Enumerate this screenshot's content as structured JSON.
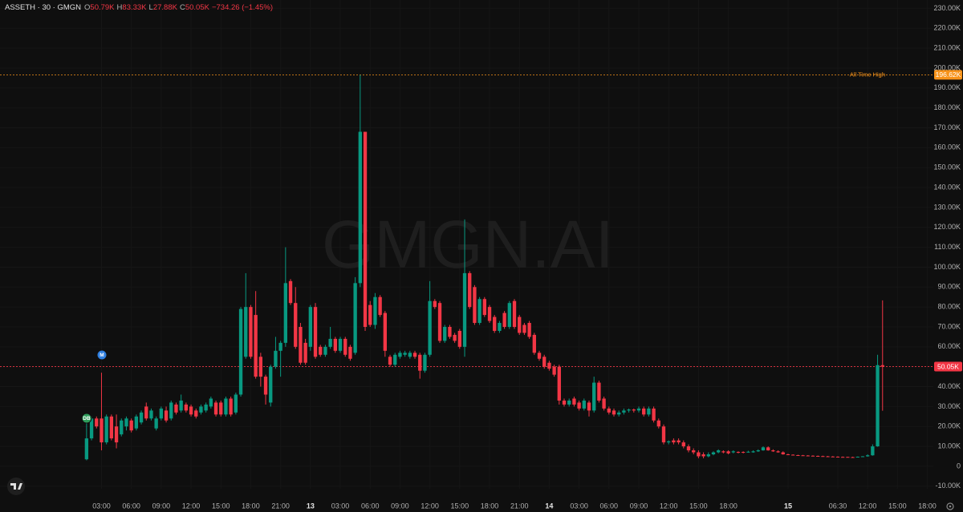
{
  "chart_data": {
    "type": "candlestick",
    "title": "ASSETH · 30 · GMGN",
    "ohlc": [
      {
        "key": "O",
        "text": "50.79K"
      },
      {
        "key": "H",
        "text": "83.33K"
      },
      {
        "key": "L",
        "text": "27.88K"
      },
      {
        "key": "C",
        "text": "50.05K"
      }
    ],
    "change": "−734.26 (−1.45%)",
    "watermark": "GMGN.AI",
    "markers": [
      {
        "label": "DB",
        "color": "#2e9e5b"
      },
      {
        "label": "M",
        "color": "#2f7fe0"
      }
    ],
    "up_color": "#089981",
    "down_color": "#f23645",
    "grid": true,
    "xlim": [
      -17.4,
      170.2
    ],
    "ylim": [
      -11.3,
      234.2
    ],
    "xticks": [
      {
        "value": 3,
        "label": "03:00"
      },
      {
        "value": 9,
        "label": "06:00"
      },
      {
        "value": 15,
        "label": "09:00"
      },
      {
        "value": 21,
        "label": "12:00"
      },
      {
        "value": 27,
        "label": "15:00"
      },
      {
        "value": 33,
        "label": "18:00"
      },
      {
        "value": 39,
        "label": "21:00"
      },
      {
        "value": 45,
        "label": "13"
      },
      {
        "value": 51,
        "label": "03:00"
      },
      {
        "value": 57,
        "label": "06:00"
      },
      {
        "value": 63,
        "label": "09:00"
      },
      {
        "value": 69,
        "label": "12:00"
      },
      {
        "value": 75,
        "label": "15:00"
      },
      {
        "value": 81,
        "label": "18:00"
      },
      {
        "value": 87,
        "label": "21:00"
      },
      {
        "value": 93,
        "label": "14"
      },
      {
        "value": 99,
        "label": "03:00"
      },
      {
        "value": 105,
        "label": "06:00"
      },
      {
        "value": 111,
        "label": "09:00"
      },
      {
        "value": 117,
        "label": "12:00"
      },
      {
        "value": 123,
        "label": "15:00"
      },
      {
        "value": 129,
        "label": "18:00"
      },
      {
        "value": 141,
        "label": "15"
      },
      {
        "value": 151,
        "label": "06:30"
      },
      {
        "value": 157,
        "label": "12:00"
      },
      {
        "value": 163,
        "label": "15:00"
      },
      {
        "value": 169,
        "label": "18:00"
      }
    ],
    "yticks": [
      {
        "value": 230,
        "label": "230.00K"
      },
      {
        "value": 220,
        "label": "220.00K"
      },
      {
        "value": 210,
        "label": "210.00K"
      },
      {
        "value": 200,
        "label": "200.00K"
      },
      {
        "value": 190,
        "label": "190.00K"
      },
      {
        "value": 180,
        "label": "180.00K"
      },
      {
        "value": 170,
        "label": "170.00K"
      },
      {
        "value": 160,
        "label": "160.00K"
      },
      {
        "value": 150,
        "label": "150.00K"
      },
      {
        "value": 140,
        "label": "140.00K"
      },
      {
        "value": 130,
        "label": "130.00K"
      },
      {
        "value": 120,
        "label": "120.00K"
      },
      {
        "value": 110,
        "label": "110.00K"
      },
      {
        "value": 100,
        "label": "100.00K"
      },
      {
        "value": 90,
        "label": "90.00K"
      },
      {
        "value": 80,
        "label": "80.00K"
      },
      {
        "value": 70,
        "label": "70.00K"
      },
      {
        "value": 60,
        "label": "60.00K"
      },
      {
        "value": 50,
        "label": "50.00K"
      },
      {
        "value": 40,
        "label": "40.00K"
      },
      {
        "value": 30,
        "label": "30.00K"
      },
      {
        "value": 20,
        "label": "20.00K"
      },
      {
        "value": 10,
        "label": "10.00K"
      },
      0,
      {
        "value": -10,
        "label": "-10.00K"
      }
    ],
    "price_lines": [
      {
        "name": "All Time High",
        "value": 196.62,
        "label": "196.62K",
        "color": "#f7931a"
      },
      {
        "value": 50.05,
        "label": "50.05K",
        "color": "#f23645"
      }
    ],
    "x": [
      0,
      1,
      2,
      3,
      4,
      5,
      6,
      7,
      8,
      9,
      10,
      11,
      12,
      13,
      14,
      15,
      16,
      17,
      18,
      19,
      20,
      21,
      22,
      23,
      24,
      25,
      26,
      27,
      28,
      29,
      30,
      31,
      32,
      33,
      34,
      35,
      36,
      37,
      38,
      39,
      40,
      41,
      42,
      43,
      44,
      45,
      46,
      47,
      48,
      49,
      50,
      51,
      52,
      53,
      54,
      55,
      56,
      57,
      58,
      59,
      60,
      61,
      62,
      63,
      64,
      65,
      66,
      67,
      68,
      69,
      70,
      71,
      72,
      73,
      74,
      75,
      76,
      77,
      78,
      79,
      80,
      81,
      82,
      83,
      84,
      85,
      86,
      87,
      88,
      89,
      90,
      91,
      92,
      93,
      94,
      95,
      96,
      97,
      98,
      99,
      100,
      101,
      102,
      103,
      104,
      105,
      106,
      107,
      108,
      109,
      110,
      111,
      112,
      113,
      114,
      115,
      116,
      117,
      118,
      119,
      120,
      121,
      122,
      123,
      124,
      125,
      126,
      127,
      128,
      129,
      130,
      131,
      132,
      133,
      134,
      135,
      136,
      137,
      138,
      139,
      140,
      141,
      142,
      143,
      144,
      145,
      146,
      147,
      148,
      149,
      150,
      151,
      152,
      153,
      154,
      155,
      156,
      157,
      158,
      159,
      160
    ],
    "candles": [
      [
        3.5,
        22,
        3,
        14
      ],
      [
        14,
        25,
        13,
        24
      ],
      [
        24,
        25,
        19,
        20
      ],
      [
        24,
        47,
        8,
        12
      ],
      [
        12,
        26,
        11,
        25
      ],
      [
        25,
        26,
        13,
        14
      ],
      [
        20,
        26,
        9,
        12
      ],
      [
        16,
        24,
        15,
        23
      ],
      [
        20,
        25,
        18,
        24
      ],
      [
        23,
        24,
        17,
        18
      ],
      [
        19,
        26,
        18,
        25
      ],
      [
        22,
        28,
        21,
        27
      ],
      [
        30,
        32,
        23,
        24
      ],
      [
        24,
        29,
        23,
        28
      ],
      [
        19,
        25,
        18,
        24
      ],
      [
        24,
        30,
        23,
        29
      ],
      [
        28,
        30,
        22,
        23
      ],
      [
        24,
        33,
        23,
        32
      ],
      [
        31,
        32,
        26,
        27
      ],
      [
        28,
        36,
        27,
        33
      ],
      [
        31,
        32,
        27,
        28
      ],
      [
        30,
        31,
        25,
        26
      ],
      [
        28,
        29,
        24,
        25
      ],
      [
        27,
        31,
        26,
        30
      ],
      [
        28,
        32,
        27,
        31
      ],
      [
        30,
        35,
        29,
        34
      ],
      [
        32,
        33,
        25,
        26
      ],
      [
        32,
        33,
        25,
        26
      ],
      [
        26,
        35,
        25,
        34
      ],
      [
        34,
        35,
        25,
        26
      ],
      [
        27,
        37,
        26,
        36
      ],
      [
        36,
        80,
        35,
        79
      ],
      [
        55,
        97,
        54,
        80
      ],
      [
        80,
        81,
        54,
        55
      ],
      [
        76,
        88,
        44,
        45
      ],
      [
        55,
        57,
        40,
        45
      ],
      [
        45,
        46,
        31,
        36
      ],
      [
        32,
        51,
        30,
        50
      ],
      [
        50,
        65,
        49,
        58
      ],
      [
        58,
        63,
        45,
        62
      ],
      [
        62,
        110,
        60,
        92
      ],
      [
        93,
        94,
        81,
        82
      ],
      [
        82,
        90,
        59,
        60
      ],
      [
        70,
        72,
        51,
        52
      ],
      [
        62,
        64,
        51,
        52
      ],
      [
        60,
        81,
        58,
        80
      ],
      [
        80,
        82,
        54,
        55
      ],
      [
        60,
        61,
        55,
        56
      ],
      [
        56,
        61,
        55,
        60
      ],
      [
        60,
        70,
        59,
        64
      ],
      [
        64,
        65,
        57,
        58
      ],
      [
        58,
        65,
        57,
        64
      ],
      [
        64,
        65,
        55,
        56
      ],
      [
        60,
        61,
        53,
        54
      ],
      [
        57,
        95,
        56,
        92
      ],
      [
        92,
        196.62,
        90,
        168
      ],
      [
        168,
        168,
        68,
        70
      ],
      [
        81,
        83,
        70,
        71
      ],
      [
        71,
        87,
        69,
        85
      ],
      [
        85,
        86,
        75,
        76
      ],
      [
        77,
        78,
        55,
        58
      ],
      [
        55,
        56,
        50,
        51
      ],
      [
        51,
        57,
        50,
        56
      ],
      [
        55,
        58,
        54,
        57
      ],
      [
        56,
        58,
        55,
        57
      ],
      [
        55,
        58,
        54,
        57
      ],
      [
        57,
        58,
        54,
        55
      ],
      [
        56,
        57,
        44,
        48
      ],
      [
        48,
        57,
        47,
        56
      ],
      [
        56,
        93,
        55,
        83
      ],
      [
        83,
        84,
        79,
        80
      ],
      [
        82,
        83,
        62,
        63
      ],
      [
        63,
        71,
        62,
        70
      ],
      [
        70,
        71,
        64,
        65
      ],
      [
        66,
        67,
        62,
        63
      ],
      [
        68,
        69,
        59,
        60
      ],
      [
        60,
        124,
        55,
        97
      ],
      [
        97,
        98,
        79,
        80
      ],
      [
        90,
        91,
        71,
        72
      ],
      [
        72,
        85,
        71,
        84
      ],
      [
        84,
        85,
        75,
        76
      ],
      [
        80,
        81,
        72,
        73
      ],
      [
        75,
        76,
        67,
        68
      ],
      [
        68,
        73,
        67,
        72
      ],
      [
        77,
        78,
        69,
        70
      ],
      [
        70,
        83,
        69,
        82
      ],
      [
        83,
        84,
        69,
        70
      ],
      [
        75,
        76,
        66,
        67
      ],
      [
        71,
        72,
        66,
        67
      ],
      [
        72,
        73,
        64,
        65
      ],
      [
        66,
        67,
        56,
        57
      ],
      [
        57,
        58,
        53,
        54
      ],
      [
        55,
        56,
        49,
        50
      ],
      [
        52,
        53,
        48,
        49
      ],
      [
        50,
        51,
        45,
        46
      ],
      [
        50,
        51,
        31,
        33
      ],
      [
        33,
        34,
        30,
        31
      ],
      [
        31,
        34,
        30,
        33
      ],
      [
        34,
        35,
        30,
        31
      ],
      [
        32,
        33,
        28,
        29
      ],
      [
        29,
        34,
        28,
        33
      ],
      [
        32,
        33,
        25,
        28
      ],
      [
        28,
        45,
        27,
        42
      ],
      [
        42,
        43,
        32,
        33
      ],
      [
        34,
        35,
        28,
        29
      ],
      [
        29,
        30,
        26,
        27
      ],
      [
        28,
        29,
        25,
        26
      ],
      [
        26,
        28,
        25,
        27
      ],
      [
        27,
        29,
        26,
        28
      ],
      [
        28,
        29,
        27,
        28.5
      ],
      [
        28.5,
        29,
        27,
        28
      ],
      [
        28,
        30,
        27,
        29
      ],
      [
        29,
        30,
        25,
        26
      ],
      [
        26,
        30,
        25,
        29
      ],
      [
        29,
        30,
        22,
        23
      ],
      [
        23,
        24,
        19,
        20
      ],
      [
        20,
        21,
        11,
        12
      ],
      [
        12,
        13,
        11,
        12.5
      ],
      [
        13,
        14,
        11,
        12
      ],
      [
        13,
        14,
        11,
        12
      ],
      [
        12,
        13,
        9,
        10
      ],
      [
        10,
        11,
        7,
        8
      ],
      [
        8,
        9,
        6,
        7
      ],
      [
        7,
        8,
        4,
        5
      ],
      [
        6,
        7,
        4,
        5
      ],
      [
        5,
        7,
        4.5,
        6
      ],
      [
        6,
        7.5,
        5.5,
        7
      ],
      [
        7,
        8.5,
        6.5,
        8
      ],
      [
        7.5,
        8,
        6.5,
        7
      ],
      [
        7.5,
        8,
        6,
        6.5
      ],
      [
        7,
        8,
        6.5,
        7.5
      ],
      [
        7.2,
        7.5,
        6.5,
        7
      ],
      [
        7.2,
        7.5,
        6.5,
        7
      ],
      [
        7,
        7.8,
        6.8,
        7.3
      ],
      [
        7,
        8,
        6.8,
        7.5
      ],
      [
        7.5,
        8.5,
        7.2,
        8
      ],
      [
        8,
        10,
        7.8,
        9.5
      ],
      [
        9.5,
        10,
        7.8,
        8
      ],
      [
        8,
        8.5,
        7.2,
        7.5
      ],
      [
        7.5,
        8,
        6.8,
        7
      ],
      [
        7,
        7.5,
        5.8,
        6
      ],
      [
        6,
        6.3,
        5.6,
        5.8
      ],
      [
        5.8,
        6,
        5.4,
        5.6
      ],
      [
        5.6,
        5.8,
        5.4,
        5.5
      ],
      [
        5.5,
        5.7,
        5.3,
        5.4
      ],
      [
        5.4,
        5.6,
        5.2,
        5.3
      ],
      [
        5.3,
        5.5,
        5.1,
        5.2
      ],
      [
        5.2,
        5.4,
        5.0,
        5.1
      ],
      [
        5.1,
        5.3,
        4.9,
        5.0
      ],
      [
        5.0,
        5.2,
        4.8,
        4.9
      ],
      [
        4.9,
        5.1,
        4.7,
        4.8
      ],
      [
        4.8,
        5.0,
        4.6,
        4.7
      ],
      [
        4.7,
        4.9,
        4.5,
        4.6
      ],
      [
        4.7,
        4.8,
        4.5,
        4.6
      ],
      [
        4.6,
        4.8,
        4.4,
        4.5
      ],
      [
        4.5,
        4.9,
        4.4,
        4.8
      ],
      [
        4.8,
        5.1,
        4.7,
        5.0
      ],
      [
        5.0,
        6.0,
        4.8,
        5.5
      ],
      [
        5.5,
        11,
        5.3,
        10
      ],
      [
        10,
        56,
        9.8,
        50.8
      ],
      [
        50.79,
        83.33,
        27.88,
        50.05
      ]
    ]
  }
}
